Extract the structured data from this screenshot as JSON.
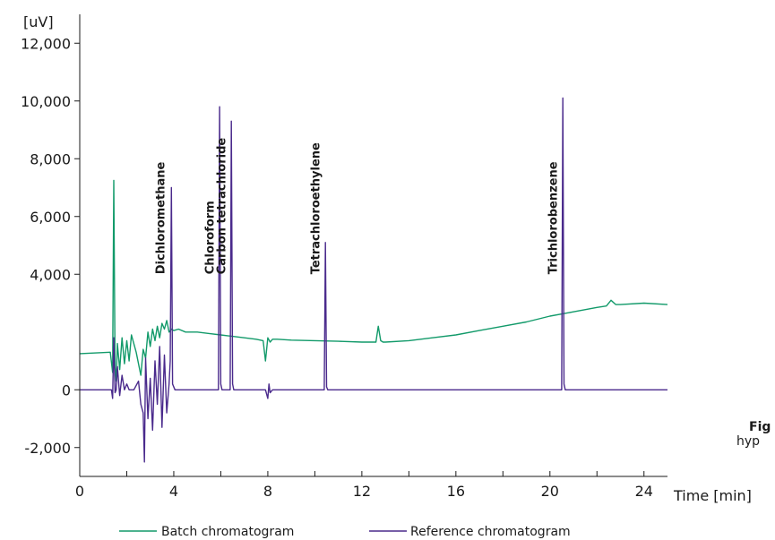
{
  "chart_data": {
    "type": "line",
    "xlabel": "Time [min]",
    "ylabel": "[uV]",
    "xlim": [
      0,
      25
    ],
    "ylim": [
      -3000,
      13000
    ],
    "xticks": [
      0,
      4,
      8,
      12,
      16,
      20,
      24
    ],
    "xtick_labels": [
      "0",
      "4",
      "8",
      "12",
      "16",
      "20",
      "24"
    ],
    "yticks": [
      -2000,
      0,
      4000,
      6000,
      8000,
      10000,
      12000
    ],
    "ytick_labels": [
      "-2,000",
      "0",
      "4,000",
      "6,000",
      "8,000",
      "10,000",
      "12,000"
    ],
    "grid": false,
    "legend_position": "bottom",
    "series": [
      {
        "name": "Batch chromatogram",
        "color": "#129a6a",
        "x": [
          0,
          1.3,
          1.4,
          1.45,
          1.5,
          1.55,
          1.6,
          1.7,
          1.8,
          1.9,
          2.0,
          2.1,
          2.2,
          2.4,
          2.6,
          2.7,
          2.8,
          2.9,
          3.0,
          3.1,
          3.2,
          3.3,
          3.4,
          3.5,
          3.6,
          3.7,
          3.8,
          3.9,
          4.0,
          4.2,
          4.5,
          5.0,
          5.5,
          6.0,
          6.5,
          7.0,
          7.5,
          7.8,
          7.9,
          8.0,
          8.1,
          8.2,
          8.4,
          9.0,
          10.0,
          11.0,
          12.0,
          12.6,
          12.7,
          12.8,
          12.9,
          13.0,
          14.0,
          15.0,
          16.0,
          17.0,
          18.0,
          19.0,
          20.0,
          21.0,
          22.0,
          22.4,
          22.6,
          22.8,
          23.0,
          24.0,
          25.0
        ],
        "values": [
          1250,
          1300,
          600,
          7250,
          800,
          300,
          1600,
          700,
          1800,
          900,
          1700,
          1000,
          1900,
          1300,
          500,
          1400,
          1100,
          2000,
          1500,
          2100,
          1700,
          2200,
          1800,
          2300,
          2100,
          2400,
          2000,
          2100,
          2050,
          2100,
          2000,
          2000,
          1950,
          1900,
          1850,
          1800,
          1750,
          1700,
          1000,
          1800,
          1650,
          1750,
          1750,
          1720,
          1700,
          1680,
          1650,
          1650,
          2200,
          1700,
          1650,
          1650,
          1700,
          1800,
          1900,
          2050,
          2200,
          2350,
          2550,
          2700,
          2850,
          2900,
          3100,
          2950,
          2950,
          3000,
          2950
        ]
      },
      {
        "name": "Reference chromatogram",
        "color": "#4a2a8c",
        "x": [
          0,
          1.35,
          1.4,
          1.45,
          1.5,
          1.55,
          1.6,
          1.7,
          1.8,
          1.9,
          2.0,
          2.1,
          2.3,
          2.5,
          2.6,
          2.7,
          2.75,
          2.8,
          2.9,
          3.0,
          3.1,
          3.2,
          3.3,
          3.4,
          3.5,
          3.6,
          3.7,
          3.8,
          3.85,
          3.9,
          3.95,
          4.05,
          4.1,
          5.9,
          5.95,
          6.0,
          6.05,
          6.1,
          6.4,
          6.45,
          6.5,
          6.55,
          6.6,
          7.9,
          8.0,
          8.05,
          8.1,
          8.2,
          8.3,
          10.4,
          10.45,
          10.5,
          10.55,
          10.6,
          12.0,
          20.5,
          20.55,
          20.6,
          20.65,
          20.7,
          25.0
        ],
        "values": [
          0,
          0,
          -300,
          1800,
          -100,
          0,
          800,
          -200,
          500,
          0,
          200,
          0,
          0,
          300,
          -500,
          -800,
          -2500,
          1100,
          -1000,
          400,
          -1400,
          1000,
          -500,
          1500,
          -1300,
          1200,
          -800,
          200,
          1000,
          7000,
          200,
          0,
          0,
          0,
          9800,
          200,
          0,
          0,
          0,
          9300,
          200,
          0,
          0,
          0,
          -300,
          200,
          -100,
          0,
          0,
          0,
          5100,
          100,
          0,
          0,
          0,
          0,
          10100,
          200,
          0,
          0,
          0
        ]
      }
    ],
    "annotations": [
      {
        "text": "Dichloromethane",
        "x": 3.9
      },
      {
        "text": "Chloroform",
        "x": 6.0
      },
      {
        "text": "Carbon tetrachloride",
        "x": 6.5
      },
      {
        "text": "Tetrachloroethylene",
        "x": 10.5
      },
      {
        "text": "Trichlorobenzene",
        "x": 20.6
      }
    ]
  },
  "caption": {
    "lines": [
      "Fig",
      "hyp"
    ]
  }
}
